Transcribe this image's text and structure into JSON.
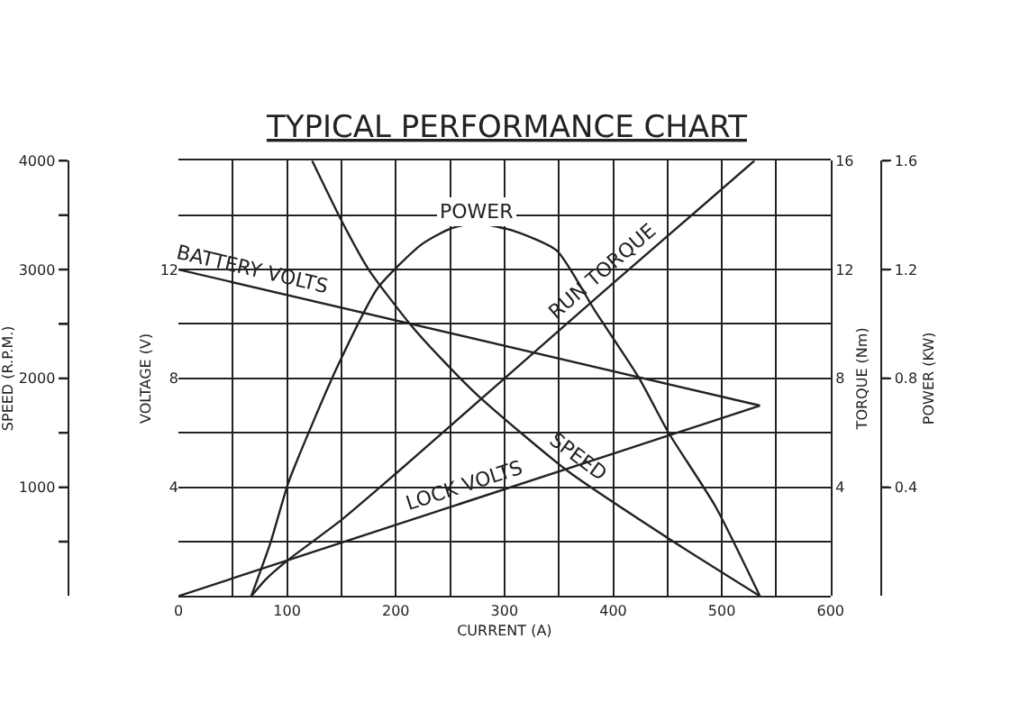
{
  "chart_data": [
    {
      "type": "line",
      "title": "TYPICAL PERFORMANCE CHART",
      "xlabel": "CURRENT (A)",
      "ylabel": "SPEED (R.P.M.)",
      "y2label": "VOLTAGE (V)",
      "xlim": [
        0,
        600
      ],
      "xticks": [
        0,
        {
          "value": 50,
          "label": null
        },
        100,
        {
          "value": 150,
          "label": null
        },
        200,
        {
          "value": 250,
          "label": null
        },
        300,
        {
          "value": 350,
          "label": null
        },
        400,
        {
          "value": 450,
          "label": null
        },
        500,
        {
          "value": 550,
          "label": null
        },
        600
      ],
      "ylim": [
        0,
        4000
      ],
      "yticks": [
        {
          "value": 500,
          "label": null
        },
        1000,
        {
          "value": 1500,
          "label": null
        },
        2000,
        {
          "value": 2500,
          "label": null
        },
        3000,
        {
          "value": 3500,
          "label": null
        },
        4000
      ],
      "y2lim": [
        0,
        16
      ],
      "y2ticks": [
        4,
        8,
        12
      ],
      "grid": true,
      "series": [
        {
          "name": "SPEED",
          "color": "#222222",
          "x": [
            123,
            150,
            175,
            213,
            240,
            278,
            358,
            457,
            535
          ],
          "values": [
            4000,
            3450,
            3000,
            2500,
            2200,
            1820,
            1150,
            490,
            0
          ]
        },
        {
          "name": "BATTERY VOLTS",
          "color": "#222222",
          "axis": "y2",
          "x": [
            0,
            535
          ],
          "values": [
            12,
            7
          ]
        },
        {
          "name": "LOCK VOLTS",
          "color": "#222222",
          "axis": "y2",
          "x": [
            0,
            535
          ],
          "values": [
            0,
            7
          ]
        }
      ]
    },
    {
      "type": "line",
      "ylabel": "TORQUE (Nm)",
      "y2label": "POWER (KW)",
      "xlim": [
        0,
        600
      ],
      "tick_labels": "y",
      "ylim": [
        0,
        16
      ],
      "yticks": [
        4,
        8,
        12,
        16
      ],
      "y2lim": [
        0,
        1.6
      ],
      "y2ticks": [
        0.4,
        0.8,
        1.2,
        1.6
      ],
      "series": [
        {
          "name": "RUN TORQUE",
          "color": "#222222",
          "x": [
            67,
            80,
            100,
            150,
            200,
            300,
            400,
            530
          ],
          "values": [
            0,
            0.6,
            1.3,
            2.8,
            4.5,
            8,
            11.5,
            16
          ]
        },
        {
          "name": "POWER",
          "color": "#222222",
          "axis": "y2",
          "x": [
            67,
            85,
            101,
            125,
            147,
            183,
            223,
            250,
            275,
            310,
            348,
            383,
            424,
            451,
            494,
            535
          ],
          "values": [
            0,
            0.2,
            0.415,
            0.65,
            0.85,
            1.13,
            1.29,
            1.35,
            1.37,
            1.34,
            1.27,
            1.05,
            0.8,
            0.6,
            0.33,
            0
          ]
        }
      ]
    }
  ]
}
